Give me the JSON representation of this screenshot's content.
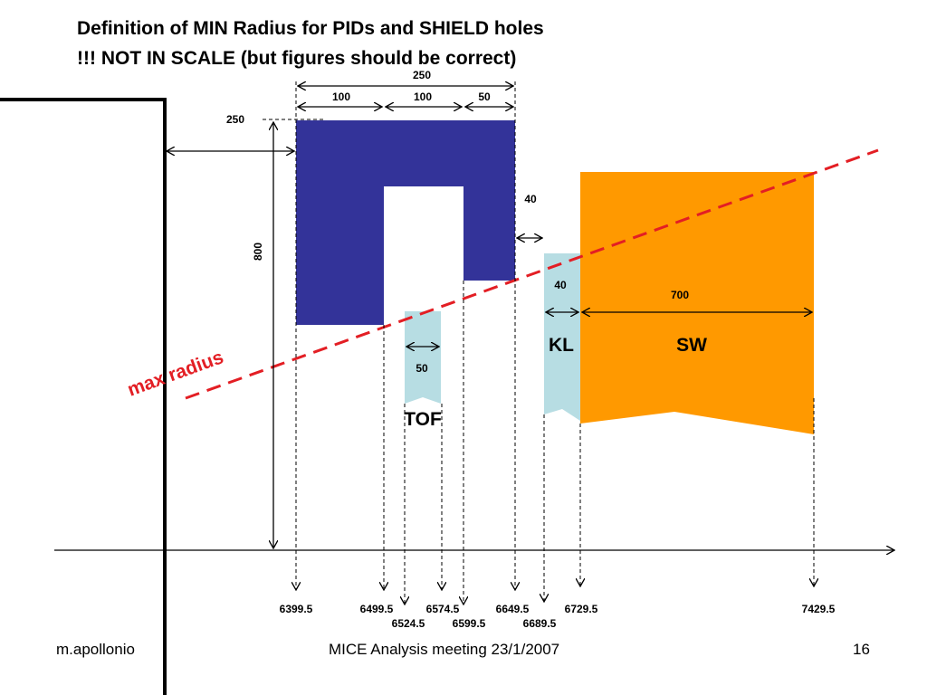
{
  "title_line1": "Definition of MIN Radius for PIDs and SHIELD holes",
  "title_line2": "!!! NOT IN SCALE (but figures should be correct)",
  "dimensions": {
    "shield_total_width": "250",
    "shield_seg1": "100",
    "shield_seg2": "100",
    "shield_seg3": "50",
    "shield_offset": "250",
    "shield_height": "800",
    "gap_shield_kl": "40",
    "kl_width": "40",
    "sw_width": "700",
    "tof_width": "50"
  },
  "components": {
    "tof": "TOF",
    "kl": "KL",
    "sw": "SW",
    "max_radius": "max radius"
  },
  "positions": [
    "6399.5",
    "6499.5",
    "6524.5",
    "6574.5",
    "6599.5",
    "6649.5",
    "6689.5",
    "6729.5",
    "7429.5"
  ],
  "footer": {
    "author": "m.apollonio",
    "meeting": "MICE Analysis meeting 23/1/2007",
    "page": "16"
  },
  "colors": {
    "shield": "#333399",
    "tof_kl": "#b7dde3",
    "sw": "#ff9900",
    "max_radius_line": "#e31e24"
  }
}
